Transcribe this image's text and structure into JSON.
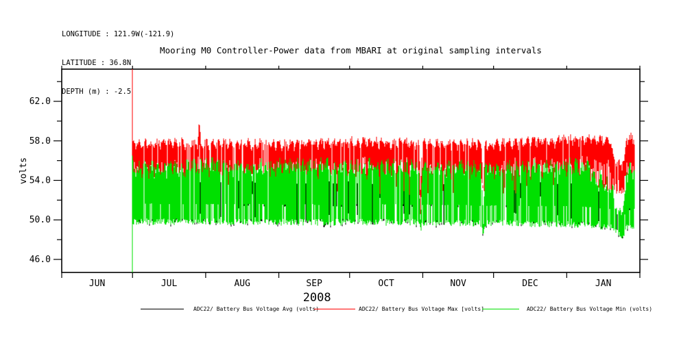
{
  "header": {
    "longitude": "LONGITUDE : 121.9W(-121.9)",
    "latitude": "LATITUDE : 36.8N",
    "depth": "DEPTH (m) : -2.5"
  },
  "title": "Mooring M0 Controller-Power data from MBARI at original sampling intervals",
  "chart_data": {
    "type": "line",
    "title": "Mooring M0 Controller-Power data from MBARI at original sampling intervals",
    "ylabel": "volts",
    "year_label": "2008",
    "x_axis": {
      "months": [
        "JUN",
        "JUL",
        "AUG",
        "SEP",
        "OCT",
        "NOV",
        "DEC",
        "JAN"
      ],
      "month_days": [
        30,
        31,
        31,
        30,
        31,
        30,
        31,
        31
      ],
      "start": "2008-06-01",
      "end": "2009-02-01",
      "data_start_frac": 0.1222,
      "data_end_frac": 0.9905
    },
    "y_axis": {
      "range": [
        44.68,
        65.26
      ],
      "major_ticks": [
        46,
        50,
        54,
        58,
        62
      ],
      "major_tick_labels": [
        "46.0",
        "50.0",
        "54.0",
        "58.0",
        "62.0"
      ],
      "minor_ticks": [
        48,
        52,
        56,
        60,
        64
      ],
      "grid": false
    },
    "notes": "dense high-frequency charge/discharge oscillation rendered as vertical strokes; initial off-scale spike at data start (2008-07-01); 60V max spike mid-July; deep dips mid-Oct and early Nov to ~48.5V; sag then burst late Jan",
    "series": [
      {
        "name": "ADC22/ Battery Bus Voltage Avg (volts)",
        "color": "#000000",
        "role": "avg",
        "envelope": [
          [
            0,
            53.7
          ],
          [
            0.571,
            53.6
          ],
          [
            0.574,
            49.3
          ],
          [
            0.577,
            53.6
          ],
          [
            0.696,
            53.6
          ],
          [
            0.699,
            48.9
          ],
          [
            0.702,
            53.6
          ],
          [
            0.9,
            53.5
          ],
          [
            0.956,
            52.0
          ],
          [
            0.975,
            49.2
          ],
          [
            0.984,
            53.0
          ],
          [
            1,
            52.8
          ]
        ]
      },
      {
        "name": "ADC22/ Battery Bus Voltage Max [volts]",
        "color": "#ff0000",
        "role": "max",
        "typical_low": 52.5,
        "top_envelope": [
          [
            0,
            57.8
          ],
          [
            0.05,
            58.0
          ],
          [
            0.13,
            58.0
          ],
          [
            0.133,
            60.2
          ],
          [
            0.136,
            58.0
          ],
          [
            0.3,
            57.9
          ],
          [
            0.45,
            58.1
          ],
          [
            0.571,
            58.0
          ],
          [
            0.574,
            53.2
          ],
          [
            0.577,
            57.9
          ],
          [
            0.696,
            57.9
          ],
          [
            0.699,
            52.0
          ],
          [
            0.702,
            57.8
          ],
          [
            0.85,
            58.3
          ],
          [
            0.95,
            58.4
          ],
          [
            0.956,
            57.0
          ],
          [
            0.962,
            56.2
          ],
          [
            0.975,
            55.8
          ],
          [
            0.981,
            56.5
          ],
          [
            0.984,
            58.6
          ],
          [
            1,
            58.4
          ]
        ]
      },
      {
        "name": "ADC22/ Battery Bus Voltage Min (volts)",
        "color": "#00e000",
        "role": "min",
        "top_envelope": [
          [
            0,
            56.3
          ],
          [
            0.3,
            56.4
          ],
          [
            0.571,
            56.3
          ],
          [
            0.574,
            51.0
          ],
          [
            0.577,
            56.2
          ],
          [
            0.696,
            56.2
          ],
          [
            0.699,
            50.3
          ],
          [
            0.702,
            56.1
          ],
          [
            0.9,
            56.4
          ],
          [
            0.956,
            54.0
          ],
          [
            0.965,
            52.5
          ],
          [
            0.975,
            52.0
          ],
          [
            0.981,
            53.5
          ],
          [
            0.984,
            56.0
          ],
          [
            1,
            55.8
          ]
        ],
        "bottom_envelope": [
          [
            0,
            49.9
          ],
          [
            0.3,
            49.8
          ],
          [
            0.571,
            49.8
          ],
          [
            0.574,
            48.9
          ],
          [
            0.577,
            49.8
          ],
          [
            0.696,
            49.7
          ],
          [
            0.699,
            48.5
          ],
          [
            0.702,
            49.7
          ],
          [
            0.9,
            49.6
          ],
          [
            0.956,
            49.3
          ],
          [
            0.965,
            49.0
          ],
          [
            0.975,
            48.5
          ],
          [
            0.981,
            48.8
          ],
          [
            0.984,
            49.4
          ],
          [
            1,
            49.4
          ]
        ]
      }
    ],
    "start_spike": {
      "max_top": 65.26,
      "min_bottom": 44.68
    }
  },
  "legend": [
    {
      "label": "ADC22/ Battery Bus Voltage Avg (volts)",
      "color": "#000000"
    },
    {
      "label": "ADC22/ Battery Bus Voltage Max [volts]",
      "color": "#ff0000"
    },
    {
      "label": "ADC22/ Battery Bus Voltage Min (volts)",
      "color": "#00e000"
    }
  ]
}
